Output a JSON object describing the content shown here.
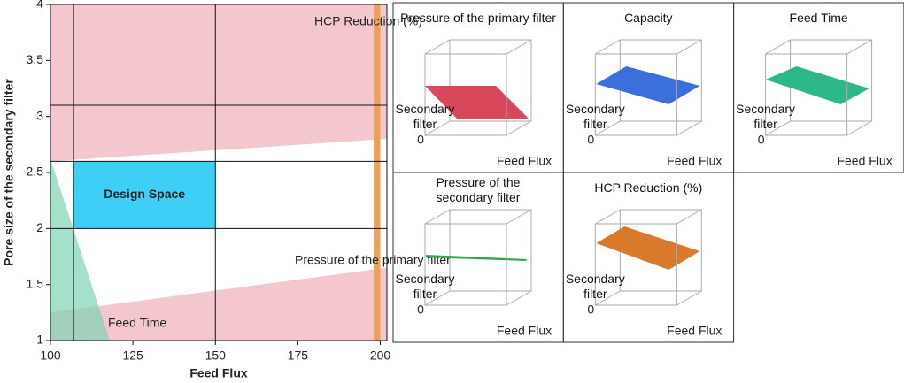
{
  "chart_data": [
    {
      "type": "region",
      "x_label": "Feed Flux",
      "y_label": "Pore size of the secondary filter",
      "xlim": [
        100,
        202
      ],
      "xticks": [
        100,
        125,
        150,
        175,
        200
      ],
      "ylim": [
        1,
        4
      ],
      "yticks": [
        1,
        1.5,
        2,
        2.5,
        3,
        3.5,
        4
      ],
      "regions": [
        {
          "color": "#f4c7cf",
          "x": [
            100,
            202,
            202,
            100
          ],
          "y": [
            2.6,
            2.8,
            4,
            4
          ]
        },
        {
          "name": "Pressure of the primary filter",
          "color": "#f4c7cf",
          "label_color": "#d9707f",
          "x": [
            100,
            202,
            202,
            100
          ],
          "y": [
            1.25,
            1.65,
            1,
            1
          ]
        },
        {
          "name": "Feed Time",
          "color": "#7fd3b4",
          "label_color": "#3cb88a",
          "x": [
            100,
            118,
            100
          ],
          "y": [
            2.62,
            1,
            1
          ]
        },
        {
          "name": "HCP Reduction (%)",
          "color": "#eba05c",
          "label_color": "#e07b20",
          "x": [
            198,
            200,
            200,
            198
          ],
          "y": [
            1,
            1,
            4,
            4
          ]
        }
      ],
      "design_space": {
        "label": "Design Space",
        "color": "#3ecff7",
        "x": [
          107,
          150
        ],
        "y": [
          2,
          2.6
        ]
      },
      "vlines": [
        107,
        150
      ],
      "hlines": [
        2,
        2.6,
        3.1
      ]
    },
    {
      "type": "surface",
      "title": "Pressure of the primary filter",
      "color": "#d9475a",
      "x_label": "Feed Flux",
      "y_label": "Secondary filter",
      "origin_tick": 0
    },
    {
      "type": "surface",
      "title": "Capacity",
      "color": "#3b6fdc",
      "x_label": "Feed Flux",
      "y_label": "Secondary filter",
      "origin_tick": 0
    },
    {
      "type": "surface",
      "title": "Feed Time",
      "color": "#2db88a",
      "x_label": "Feed Flux",
      "y_label": "Secondary filter",
      "origin_tick": 0
    },
    {
      "type": "surface",
      "title": "Pressure of the secondary filter",
      "color": "#2ea84a",
      "x_label": "Feed Flux",
      "y_label": "Secondary filter",
      "origin_tick": 0
    },
    {
      "type": "surface",
      "title": "HCP Reduction (%)",
      "color": "#d97a2a",
      "x_label": "Feed Flux",
      "y_label": "Secondary filter",
      "origin_tick": 0
    }
  ]
}
